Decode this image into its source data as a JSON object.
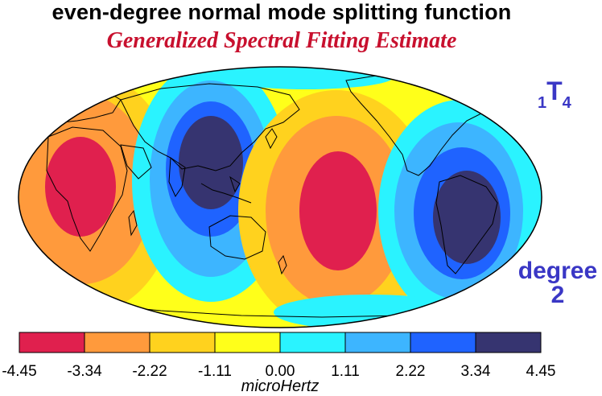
{
  "title": "even-degree normal mode splitting function",
  "subtitle": "Generalized Spectral Fitting Estimate",
  "mode": {
    "prefix": "1",
    "letter": "T",
    "suffix": "4"
  },
  "degree": {
    "line1": "degree",
    "line2": "2"
  },
  "colorbar": {
    "ticks": [
      "-4.45",
      "-3.34",
      "-2.22",
      "-1.11",
      "0.00",
      "1.11",
      "2.22",
      "3.34",
      "4.45"
    ],
    "colors": [
      "#e0204e",
      "#ff9a3c",
      "#ffd21e",
      "#ffff1a",
      "#2af3ff",
      "#3db5ff",
      "#1f63ff",
      "#363470"
    ],
    "unit": "microHertz"
  },
  "map": {
    "projection": "Mollweide (Pacific-centered)",
    "field": "degree-2 splitting function",
    "coastlines": true
  }
}
